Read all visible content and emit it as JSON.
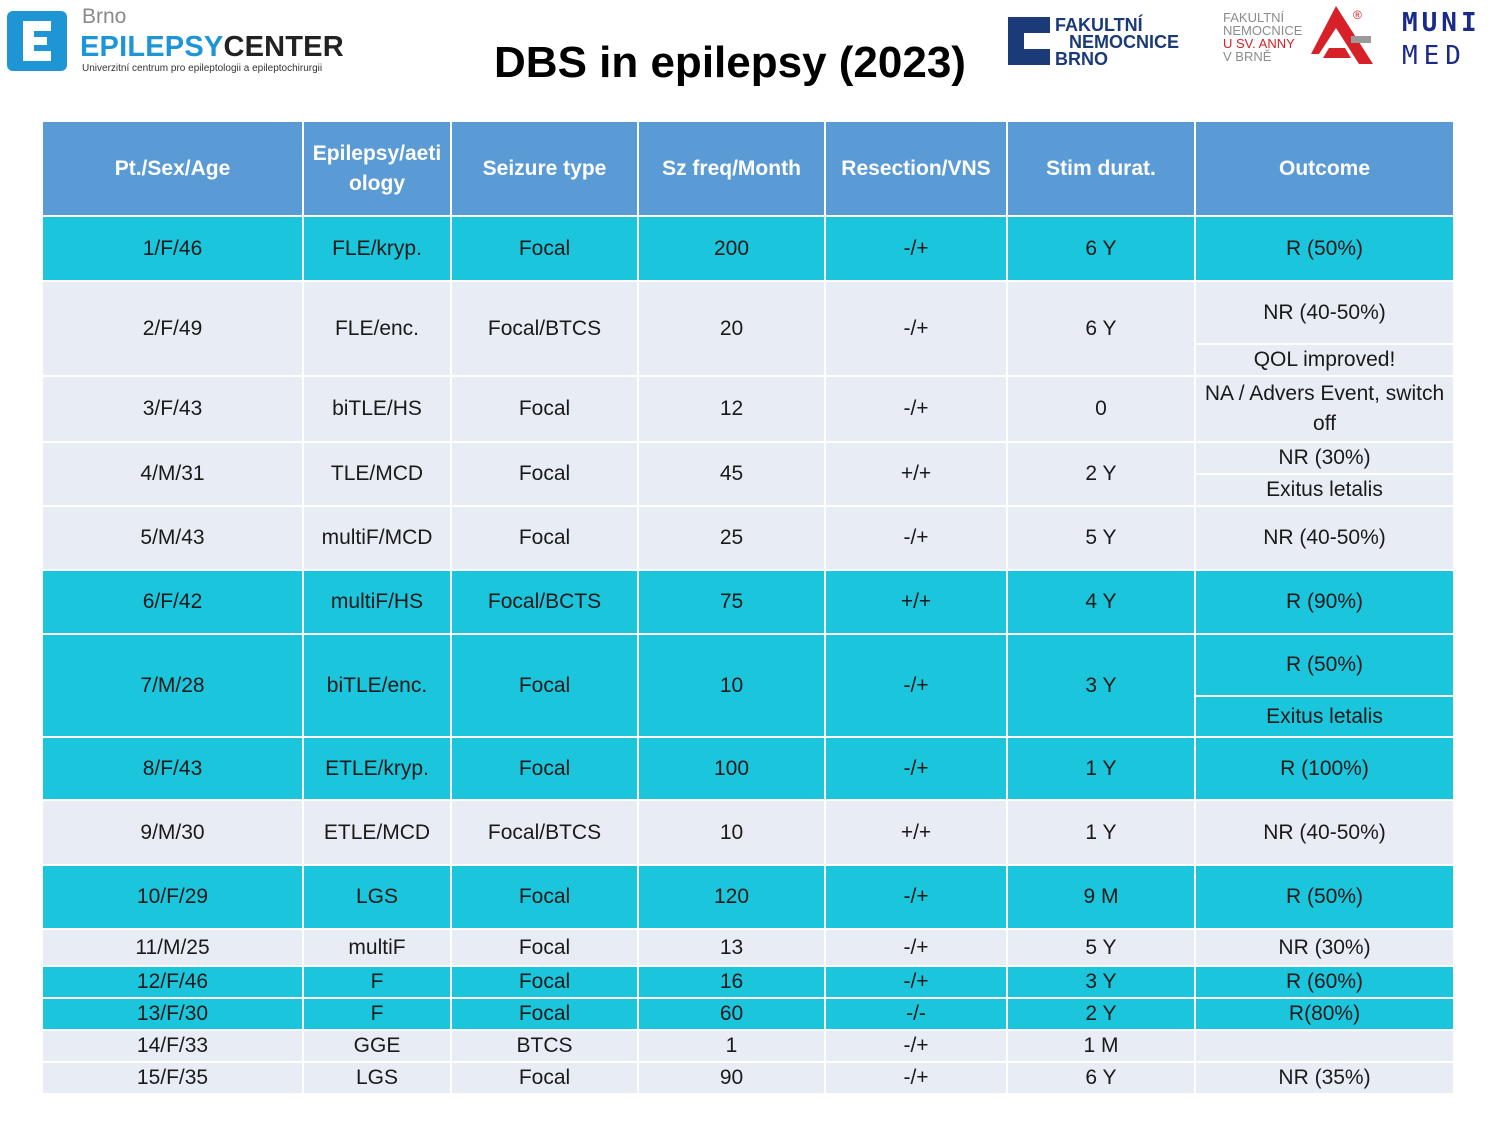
{
  "header": {
    "epilepsy_logo": {
      "brno": "Brno",
      "name_part1": "EPILEPSY",
      "name_part2": "CENTER",
      "subtitle": "Univerzitní centrum pro epileptologii a epileptochirurgii"
    },
    "title": "DBS in epilepsy (2023)",
    "fn_logo": {
      "line1": "FAKULTNÍ",
      "line2": "NEMOCNICE",
      "line3": "BRNO"
    },
    "anna_logo": {
      "line1": "FAKULTNÍ",
      "line2": "NEMOCNICE",
      "line3": "U SV. ANNY",
      "line4": "V BRNĚ",
      "reg": "®"
    },
    "muni_logo": {
      "line1": "MUNI",
      "line2": "MED"
    }
  },
  "colors": {
    "header_blue": "#5b9bd5",
    "turquoise": "#1bc5dc",
    "light": "#e8ecf5"
  },
  "table": {
    "columns": [
      "Pt./Sex/Age",
      "Epilepsy/aeti ology",
      "Seizure type",
      "Sz freq/Month",
      "Resection/VNS",
      "Stim durat.",
      "Outcome"
    ],
    "rows": [
      {
        "pt": "1/F/46",
        "epi": "FLE/kryp.",
        "sz": "Focal",
        "freq": "200",
        "res": "-/+",
        "stim": "6 Y",
        "outcome": [
          "R (50%)"
        ]
      },
      {
        "pt": "2/F/49",
        "epi": "FLE/enc.",
        "sz": "Focal/BTCS",
        "freq": "20",
        "res": "-/+",
        "stim": "6 Y",
        "outcome": [
          "NR (40-50%)",
          "QOL improved!"
        ]
      },
      {
        "pt": "3/F/43",
        "epi": "biTLE/HS",
        "sz": "Focal",
        "freq": "12",
        "res": "-/+",
        "stim": "0",
        "outcome": [
          "NA / Advers Event, switch off"
        ]
      },
      {
        "pt": "4/M/31",
        "epi": "TLE/MCD",
        "sz": "Focal",
        "freq": "45",
        "res": "+/+",
        "stim": "2 Y",
        "outcome": [
          "NR (30%)",
          "Exitus letalis"
        ]
      },
      {
        "pt": "5/M/43",
        "epi": "multiF/MCD",
        "sz": "Focal",
        "freq": "25",
        "res": "-/+",
        "stim": "5 Y",
        "outcome": [
          "NR (40-50%)"
        ]
      },
      {
        "pt": "6/F/42",
        "epi": "multiF/HS",
        "sz": "Focal/BCTS",
        "freq": "75",
        "res": "+/+",
        "stim": "4 Y",
        "outcome": [
          "R (90%)"
        ]
      },
      {
        "pt": "7/M/28",
        "epi": "biTLE/enc.",
        "sz": "Focal",
        "freq": "10",
        "res": "-/+",
        "stim": "3 Y",
        "outcome": [
          "R (50%)",
          "Exitus letalis"
        ]
      },
      {
        "pt": "8/F/43",
        "epi": "ETLE/kryp.",
        "sz": "Focal",
        "freq": "100",
        "res": "-/+",
        "stim": "1 Y",
        "outcome": [
          "R (100%)"
        ]
      },
      {
        "pt": "9/M/30",
        "epi": "ETLE/MCD",
        "sz": "Focal/BTCS",
        "freq": "10",
        "res": "+/+",
        "stim": "1 Y",
        "outcome": [
          "NR (40-50%)"
        ]
      },
      {
        "pt": "10/F/29",
        "epi": "LGS",
        "sz": "Focal",
        "freq": "120",
        "res": "-/+",
        "stim": "9 M",
        "outcome": [
          "R (50%)"
        ]
      },
      {
        "pt": "11/M/25",
        "epi": "multiF",
        "sz": "Focal",
        "freq": "13",
        "res": "-/+",
        "stim": "5 Y",
        "outcome": [
          "NR (30%)"
        ]
      },
      {
        "pt": "12/F/46",
        "epi": "F",
        "sz": "Focal",
        "freq": "16",
        "res": "-/+",
        "stim": "3 Y",
        "outcome": [
          "R (60%)"
        ]
      },
      {
        "pt": "13/F/30",
        "epi": "F",
        "sz": "Focal",
        "freq": "60",
        "res": "-/-",
        "stim": "2 Y",
        "outcome": [
          "R(80%)"
        ]
      },
      {
        "pt": "14/F/33",
        "epi": "GGE",
        "sz": "BTCS",
        "freq": "1",
        "res": "-/+",
        "stim": "1 M",
        "outcome": [
          ""
        ]
      },
      {
        "pt": "15/F/35",
        "epi": "LGS",
        "sz": "Focal",
        "freq": "90",
        "res": "-/+",
        "stim": "6 Y",
        "outcome": [
          "NR (35%)"
        ]
      }
    ]
  }
}
